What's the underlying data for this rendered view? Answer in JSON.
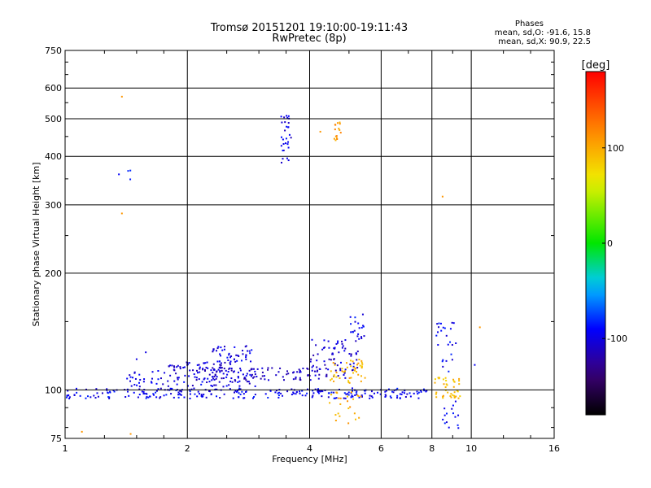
{
  "header": {
    "title_line1": "Tromsø 20151201 19:10:00-19:11:43",
    "title_line2": "RwPretec (8p)",
    "phase_title": "Phases",
    "phase_o": "mean, sd,O: -91.6, 15.8",
    "phase_x": "mean, sd,X:  90.9, 22.5"
  },
  "colorbar": {
    "label": "[deg]",
    "ticks": [
      "100",
      "0",
      "-100"
    ],
    "range": [
      -180,
      180
    ]
  },
  "chart_data": {
    "type": "scatter",
    "xlabel": "Frequency [MHz]",
    "ylabel": "Stationary phase Virtual Height [km]",
    "xscale": "log2",
    "yscale": "log",
    "xlim": [
      1,
      16
    ],
    "ylim": [
      75,
      750
    ],
    "xticks": [
      "1",
      "2",
      "4",
      "6",
      "8",
      "10",
      "16"
    ],
    "yticks": [
      "75",
      "100",
      "200",
      "300",
      "400",
      "500",
      "600",
      "750"
    ],
    "grid": true,
    "series": [
      {
        "x_range": [
          1.0,
          7.8
        ],
        "h_range": [
          95,
          101
        ],
        "phase": -95,
        "n": 260
      },
      {
        "x_range": [
          1.4,
          3.0
        ],
        "h_range": [
          100,
          112
        ],
        "phase": -100,
        "n": 90
      },
      {
        "x_range": [
          1.8,
          2.6
        ],
        "h_range": [
          112,
          118
        ],
        "phase": -105,
        "n": 50
      },
      {
        "x_range": [
          2.3,
          2.9
        ],
        "h_range": [
          118,
          130
        ],
        "phase": -100,
        "n": 45
      },
      {
        "x_range": [
          2.1,
          4.9
        ],
        "h_range": [
          106,
          114
        ],
        "phase": -110,
        "n": 110
      },
      {
        "x_range": [
          4.0,
          5.3
        ],
        "h_range": [
          112,
          135
        ],
        "phase": -105,
        "n": 60
      },
      {
        "x_range": [
          4.5,
          5.5
        ],
        "h_range": [
          104,
          120
        ],
        "phase": 95,
        "n": 45
      },
      {
        "x_range": [
          5.0,
          5.5
        ],
        "h_range": [
          135,
          160
        ],
        "phase": -95,
        "n": 20
      },
      {
        "x_range": [
          3.4,
          3.6
        ],
        "h_range": [
          385,
          510
        ],
        "phase": -100,
        "n": 30
      },
      {
        "x_range": [
          4.6,
          4.8
        ],
        "h_range": [
          440,
          490
        ],
        "phase": 110,
        "n": 15
      },
      {
        "x_range": [
          8.1,
          9.4
        ],
        "h_range": [
          95,
          108
        ],
        "phase": 90,
        "n": 40
      },
      {
        "x_range": [
          8.2,
          9.2
        ],
        "h_range": [
          110,
          150
        ],
        "phase": -95,
        "n": 25
      },
      {
        "x_range": [
          8.4,
          9.3
        ],
        "h_range": [
          78,
          95
        ],
        "phase": -95,
        "n": 15
      },
      {
        "x_range": [
          1.35,
          1.45
        ],
        "h_range": [
          330,
          410
        ],
        "phase": -95,
        "n": 4
      },
      {
        "x_range": [
          4.4,
          5.4
        ],
        "h_range": [
          82,
          99
        ],
        "phase": 100,
        "n": 25
      }
    ],
    "points": [
      {
        "x": 1.38,
        "y": 570,
        "phase": 110
      },
      {
        "x": 1.38,
        "y": 285,
        "phase": 110
      },
      {
        "x": 8.5,
        "y": 315,
        "phase": 110
      },
      {
        "x": 1.1,
        "y": 78,
        "phase": 110
      },
      {
        "x": 1.45,
        "y": 77,
        "phase": 110
      },
      {
        "x": 10.2,
        "y": 116,
        "phase": -95
      },
      {
        "x": 10.5,
        "y": 145,
        "phase": 110
      },
      {
        "x": 1.58,
        "y": 125,
        "phase": -100
      },
      {
        "x": 1.5,
        "y": 120,
        "phase": -100
      },
      {
        "x": 4.25,
        "y": 463,
        "phase": 110
      }
    ]
  }
}
